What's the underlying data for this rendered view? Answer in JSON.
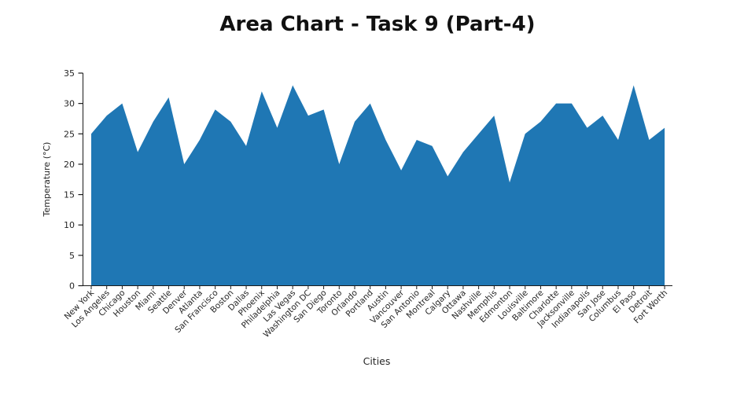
{
  "title": "Area Chart - Task 9 (Part-4)",
  "chart_data": {
    "type": "area",
    "title": "Area Chart - Task 9 (Part-4)",
    "xlabel": "Cities",
    "ylabel": "Temperature (°C)",
    "ylim": [
      0,
      35
    ],
    "yticks": [
      0,
      5,
      10,
      15,
      20,
      25,
      30,
      35
    ],
    "grid": false,
    "legend": "none",
    "fill_color": "#1f77b4",
    "categories": [
      "New York",
      "Los Angeles",
      "Chicago",
      "Houston",
      "Miami",
      "Seattle",
      "Denver",
      "Atlanta",
      "San Francisco",
      "Boston",
      "Dallas",
      "Phoenix",
      "Philadelphia",
      "Las Vegas",
      "Washington DC",
      "San Diego",
      "Toronto",
      "Orlando",
      "Portland",
      "Austin",
      "Vancouver",
      "San Antonio",
      "Montreal",
      "Calgary",
      "Ottawa",
      "Nashville",
      "Memphis",
      "Edmonton",
      "Louisville",
      "Baltimore",
      "Charlotte",
      "Jacksonville",
      "Indianapolis",
      "San Jose",
      "Columbus",
      "El Paso",
      "Detroit",
      "Fort Worth"
    ],
    "values": [
      25,
      28,
      30,
      22,
      27,
      31,
      20,
      24,
      29,
      27,
      23,
      32,
      26,
      33,
      28,
      29,
      20,
      27,
      30,
      24,
      19,
      24,
      23,
      18,
      22,
      25,
      28,
      17,
      25,
      27,
      30,
      30,
      26,
      28,
      24,
      33,
      24,
      26
    ]
  }
}
